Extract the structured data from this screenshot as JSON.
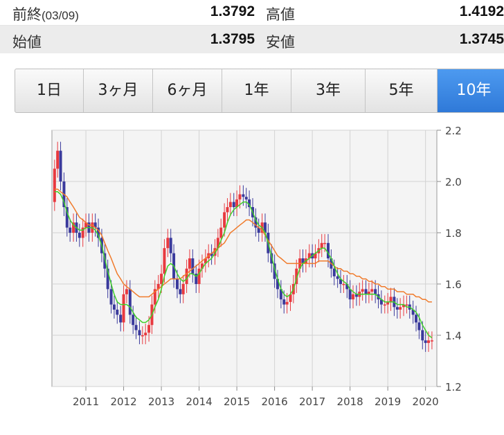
{
  "quote": {
    "prev_close_label": "前終",
    "prev_close_date": "(03/09)",
    "prev_close_value": "1.3792",
    "high_label": "高値",
    "high_value": "1.4192",
    "open_label": "始値",
    "open_value": "1.3795",
    "low_label": "安値",
    "low_value": "1.3745"
  },
  "tabs": [
    {
      "label": "1日",
      "active": false
    },
    {
      "label": "3ヶ月",
      "active": false
    },
    {
      "label": "6ヶ月",
      "active": false
    },
    {
      "label": "1年",
      "active": false
    },
    {
      "label": "3年",
      "active": false
    },
    {
      "label": "5年",
      "active": false
    },
    {
      "label": "10年",
      "active": true
    }
  ],
  "chart_data": {
    "type": "candlestick",
    "title": "",
    "xlabel": "",
    "ylabel": "",
    "ylim": [
      1.2,
      2.2
    ],
    "y_ticks": [
      "1.2",
      "1.4",
      "1.6",
      "1.8",
      "2.0",
      "2.2"
    ],
    "x_ticks": [
      "2011",
      "2012",
      "2013",
      "2014",
      "2015",
      "2016",
      "2017",
      "2018",
      "2019",
      "2020"
    ],
    "xlim": [
      2010.1,
      2020.3
    ],
    "grid": true,
    "colors": {
      "up": "#e8393f",
      "down": "#3a3a9c",
      "ma_short": "#40d02a",
      "ma_long": "#f07a2a"
    },
    "close_series": {
      "x": [
        2010.17,
        2010.25,
        2010.33,
        2010.42,
        2010.5,
        2010.58,
        2010.67,
        2010.75,
        2010.83,
        2010.92,
        2011.0,
        2011.08,
        2011.17,
        2011.25,
        2011.33,
        2011.42,
        2011.5,
        2011.58,
        2011.67,
        2011.75,
        2011.83,
        2011.92,
        2012.0,
        2012.08,
        2012.17,
        2012.25,
        2012.33,
        2012.42,
        2012.5,
        2012.58,
        2012.67,
        2012.75,
        2012.83,
        2012.92,
        2013.0,
        2013.08,
        2013.17,
        2013.25,
        2013.33,
        2013.42,
        2013.5,
        2013.58,
        2013.67,
        2013.75,
        2013.83,
        2013.92,
        2014.0,
        2014.08,
        2014.17,
        2014.25,
        2014.33,
        2014.42,
        2014.5,
        2014.58,
        2014.67,
        2014.75,
        2014.83,
        2014.92,
        2015.0,
        2015.08,
        2015.17,
        2015.25,
        2015.33,
        2015.42,
        2015.5,
        2015.58,
        2015.67,
        2015.75,
        2015.83,
        2015.92,
        2016.0,
        2016.08,
        2016.17,
        2016.25,
        2016.33,
        2016.42,
        2016.5,
        2016.58,
        2016.67,
        2016.75,
        2016.83,
        2016.92,
        2017.0,
        2017.08,
        2017.17,
        2017.25,
        2017.33,
        2017.42,
        2017.5,
        2017.58,
        2017.67,
        2017.75,
        2017.83,
        2017.92,
        2018.0,
        2018.08,
        2018.17,
        2018.25,
        2018.33,
        2018.42,
        2018.5,
        2018.58,
        2018.67,
        2018.75,
        2018.83,
        2018.92,
        2019.0,
        2019.08,
        2019.17,
        2019.25,
        2019.33,
        2019.42,
        2019.5,
        2019.58,
        2019.67,
        2019.75,
        2019.83,
        2019.92,
        2020.0,
        2020.08,
        2020.17
      ],
      "close": [
        2.05,
        2.12,
        2.0,
        1.9,
        1.82,
        1.8,
        1.84,
        1.8,
        1.78,
        1.82,
        1.84,
        1.8,
        1.84,
        1.82,
        1.78,
        1.72,
        1.66,
        1.58,
        1.52,
        1.5,
        1.48,
        1.45,
        1.56,
        1.58,
        1.48,
        1.44,
        1.42,
        1.4,
        1.4,
        1.41,
        1.44,
        1.52,
        1.58,
        1.6,
        1.64,
        1.74,
        1.78,
        1.72,
        1.62,
        1.58,
        1.56,
        1.6,
        1.66,
        1.7,
        1.64,
        1.6,
        1.66,
        1.68,
        1.7,
        1.72,
        1.71,
        1.74,
        1.78,
        1.82,
        1.88,
        1.9,
        1.92,
        1.9,
        1.93,
        1.95,
        1.94,
        1.93,
        1.9,
        1.86,
        1.82,
        1.8,
        1.84,
        1.8,
        1.72,
        1.68,
        1.62,
        1.58,
        1.54,
        1.52,
        1.53,
        1.56,
        1.6,
        1.66,
        1.7,
        1.68,
        1.7,
        1.72,
        1.7,
        1.72,
        1.74,
        1.76,
        1.76,
        1.7,
        1.66,
        1.63,
        1.62,
        1.6,
        1.6,
        1.58,
        1.54,
        1.56,
        1.55,
        1.57,
        1.58,
        1.56,
        1.57,
        1.58,
        1.56,
        1.54,
        1.52,
        1.52,
        1.53,
        1.55,
        1.51,
        1.5,
        1.51,
        1.52,
        1.52,
        1.5,
        1.48,
        1.45,
        1.42,
        1.38,
        1.37,
        1.38,
        1.38
      ],
      "ma_short": [
        1.96,
        1.96,
        1.95,
        1.92,
        1.88,
        1.85,
        1.83,
        1.82,
        1.81,
        1.81,
        1.82,
        1.82,
        1.82,
        1.81,
        1.79,
        1.75,
        1.7,
        1.65,
        1.6,
        1.56,
        1.53,
        1.52,
        1.52,
        1.52,
        1.51,
        1.49,
        1.47,
        1.46,
        1.45,
        1.45,
        1.46,
        1.48,
        1.51,
        1.54,
        1.58,
        1.63,
        1.67,
        1.68,
        1.67,
        1.64,
        1.62,
        1.61,
        1.62,
        1.64,
        1.64,
        1.63,
        1.64,
        1.66,
        1.68,
        1.69,
        1.7,
        1.72,
        1.74,
        1.77,
        1.8,
        1.84,
        1.87,
        1.89,
        1.9,
        1.91,
        1.92,
        1.92,
        1.91,
        1.88,
        1.85,
        1.83,
        1.82,
        1.8,
        1.76,
        1.71,
        1.66,
        1.62,
        1.58,
        1.56,
        1.55,
        1.56,
        1.58,
        1.62,
        1.66,
        1.68,
        1.69,
        1.7,
        1.71,
        1.72,
        1.73,
        1.74,
        1.74,
        1.72,
        1.7,
        1.67,
        1.64,
        1.62,
        1.61,
        1.6,
        1.58,
        1.57,
        1.56,
        1.56,
        1.56,
        1.56,
        1.56,
        1.56,
        1.56,
        1.55,
        1.54,
        1.53,
        1.53,
        1.53,
        1.53,
        1.52,
        1.52,
        1.52,
        1.51,
        1.51,
        1.5,
        1.49,
        1.47,
        1.44,
        1.42,
        1.4,
        1.39
      ],
      "ma_long": [
        1.97,
        1.97,
        1.96,
        1.95,
        1.94,
        1.92,
        1.9,
        1.88,
        1.86,
        1.85,
        1.84,
        1.83,
        1.83,
        1.82,
        1.81,
        1.79,
        1.76,
        1.73,
        1.7,
        1.67,
        1.64,
        1.62,
        1.6,
        1.59,
        1.58,
        1.57,
        1.56,
        1.55,
        1.55,
        1.55,
        1.55,
        1.56,
        1.57,
        1.58,
        1.59,
        1.6,
        1.61,
        1.62,
        1.62,
        1.62,
        1.62,
        1.63,
        1.64,
        1.65,
        1.66,
        1.67,
        1.68,
        1.69,
        1.7,
        1.71,
        1.72,
        1.73,
        1.74,
        1.75,
        1.76,
        1.78,
        1.8,
        1.81,
        1.82,
        1.83,
        1.84,
        1.85,
        1.85,
        1.84,
        1.83,
        1.82,
        1.81,
        1.79,
        1.77,
        1.75,
        1.73,
        1.71,
        1.7,
        1.69,
        1.68,
        1.68,
        1.68,
        1.68,
        1.68,
        1.68,
        1.68,
        1.68,
        1.68,
        1.68,
        1.69,
        1.69,
        1.69,
        1.69,
        1.68,
        1.67,
        1.66,
        1.66,
        1.65,
        1.65,
        1.64,
        1.64,
        1.63,
        1.63,
        1.62,
        1.62,
        1.61,
        1.61,
        1.6,
        1.6,
        1.59,
        1.59,
        1.58,
        1.58,
        1.58,
        1.57,
        1.57,
        1.57,
        1.56,
        1.56,
        1.56,
        1.55,
        1.55,
        1.54,
        1.54,
        1.53,
        1.53
      ]
    }
  }
}
